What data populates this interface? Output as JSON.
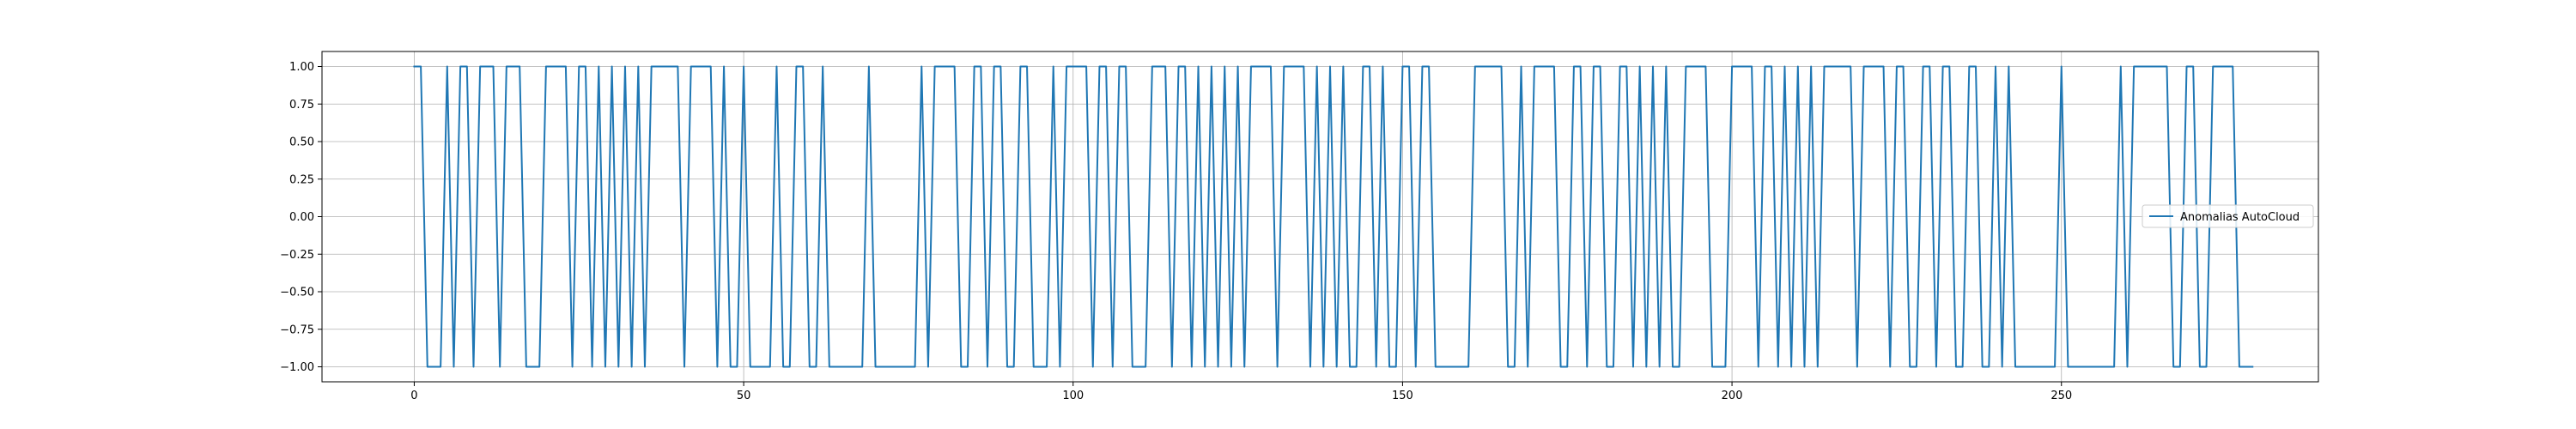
{
  "chart_data": {
    "type": "line",
    "title": "",
    "xlabel": "",
    "ylabel": "",
    "xlim": [
      -14,
      289
    ],
    "ylim": [
      -1.1,
      1.1
    ],
    "xticks": [
      0,
      50,
      100,
      150,
      200,
      250
    ],
    "xtick_labels": [
      "0",
      "50",
      "100",
      "150",
      "200",
      "250"
    ],
    "yticks": [
      1.0,
      0.75,
      0.5,
      0.25,
      0.0,
      -0.25,
      -0.5,
      -0.75,
      -1.0
    ],
    "ytick_labels": [
      "1.00",
      "0.75",
      "0.50",
      "0.25",
      "0.00",
      "−0.25",
      "−0.50",
      "−0.75",
      "−1.00"
    ],
    "grid": true,
    "legend_position": "center-right",
    "series": [
      {
        "name": "Anomalias AutoCloud",
        "color": "#1f77b4",
        "x_start": 0,
        "x_step": 1,
        "values": [
          1,
          1,
          -1,
          -1,
          -1,
          1,
          -1,
          1,
          1,
          -1,
          1,
          1,
          1,
          -1,
          1,
          1,
          1,
          -1,
          -1,
          -1,
          1,
          1,
          1,
          1,
          -1,
          1,
          1,
          -1,
          1,
          -1,
          1,
          -1,
          1,
          -1,
          1,
          -1,
          1,
          1,
          1,
          1,
          1,
          -1,
          1,
          1,
          1,
          1,
          -1,
          1,
          -1,
          -1,
          1,
          -1,
          -1,
          -1,
          -1,
          1,
          -1,
          -1,
          1,
          1,
          -1,
          -1,
          1,
          -1,
          -1,
          -1,
          -1,
          -1,
          -1,
          1,
          -1,
          -1,
          -1,
          -1,
          -1,
          -1,
          -1,
          1,
          -1,
          1,
          1,
          1,
          1,
          -1,
          -1,
          1,
          1,
          -1,
          1,
          1,
          -1,
          -1,
          1,
          1,
          -1,
          -1,
          -1,
          1,
          -1,
          1,
          1,
          1,
          1,
          -1,
          1,
          1,
          -1,
          1,
          1,
          -1,
          -1,
          -1,
          1,
          1,
          1,
          -1,
          1,
          1,
          -1,
          1,
          -1,
          1,
          -1,
          1,
          -1,
          1,
          -1,
          1,
          1,
          1,
          1,
          -1,
          1,
          1,
          1,
          1,
          -1,
          1,
          -1,
          1,
          -1,
          1,
          -1,
          -1,
          1,
          1,
          -1,
          1,
          -1,
          -1,
          1,
          1,
          -1,
          1,
          1,
          -1,
          -1,
          -1,
          -1,
          -1,
          -1,
          1,
          1,
          1,
          1,
          1,
          -1,
          -1,
          1,
          -1,
          1,
          1,
          1,
          1,
          -1,
          -1,
          1,
          1,
          -1,
          1,
          1,
          -1,
          -1,
          1,
          1,
          -1,
          1,
          -1,
          1,
          -1,
          1,
          -1,
          -1,
          1,
          1,
          1,
          1,
          -1,
          -1,
          -1,
          1,
          1,
          1,
          1,
          -1,
          1,
          1,
          -1,
          1,
          -1,
          1,
          -1,
          1,
          -1,
          1,
          1,
          1,
          1,
          1,
          -1,
          1,
          1,
          1,
          1,
          -1,
          1,
          1,
          -1,
          -1,
          1,
          1,
          -1,
          1,
          1,
          -1,
          -1,
          1,
          1,
          -1,
          -1,
          1,
          -1,
          1,
          -1,
          -1,
          -1,
          -1,
          -1,
          -1,
          -1,
          1,
          -1,
          -1,
          -1,
          -1,
          -1,
          -1,
          -1,
          -1,
          1,
          -1,
          1,
          1,
          1,
          1,
          1,
          1,
          -1,
          -1,
          1,
          1,
          -1,
          -1,
          1,
          1,
          1,
          1,
          -1,
          -1,
          -1
        ]
      }
    ]
  }
}
